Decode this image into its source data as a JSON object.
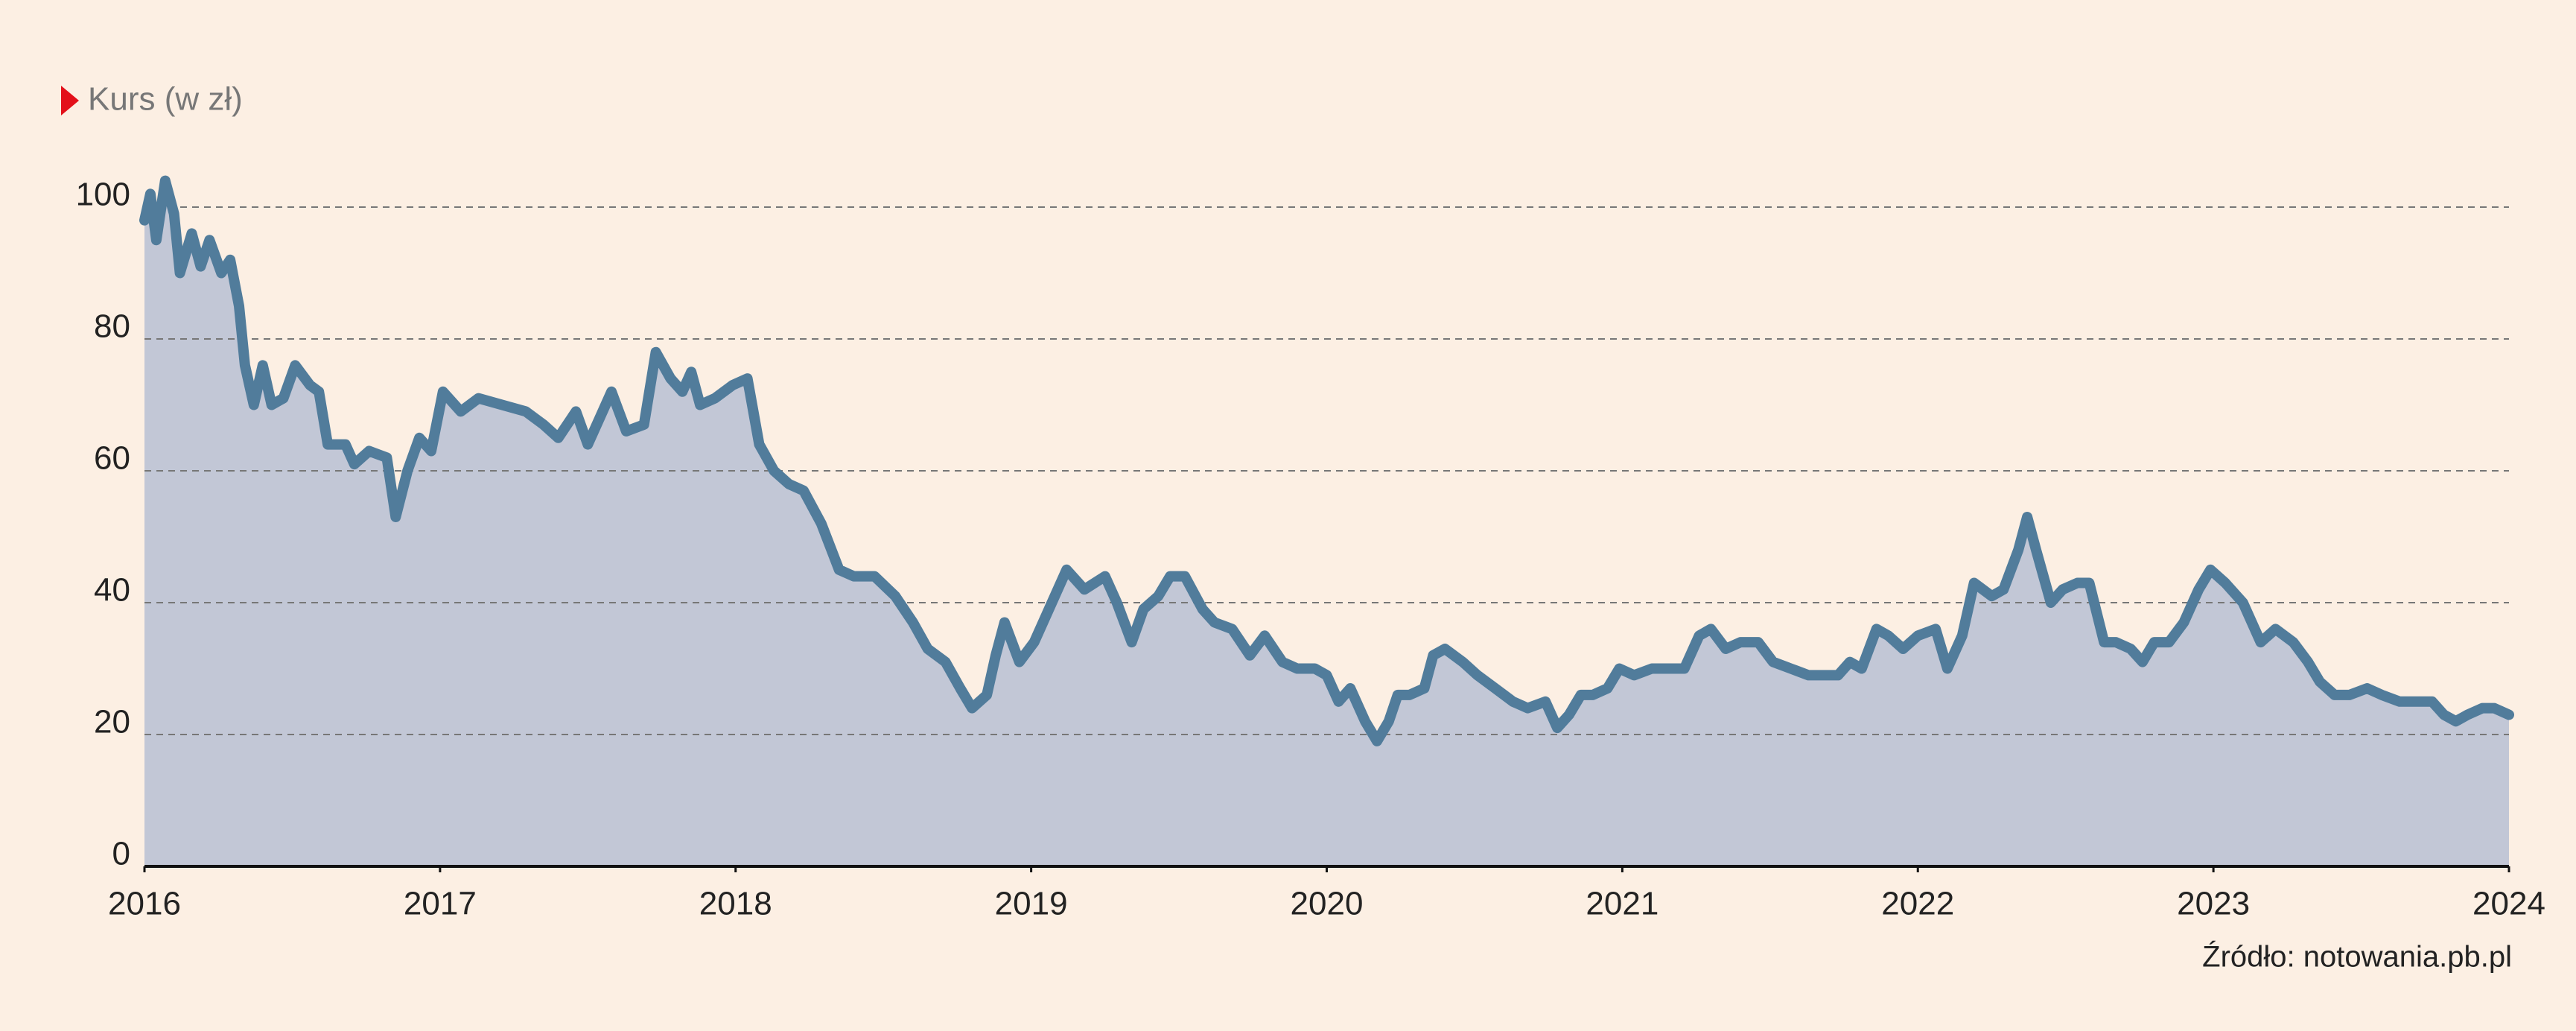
{
  "chart_data": {
    "type": "area",
    "title": "Kurs (w zł)",
    "source": "Źródło: notowania.pb.pl",
    "color": "#517c9b",
    "fill": "#c2c7d6",
    "grid": true,
    "xlim": [
      2016,
      2024
    ],
    "xticks": [
      2016,
      2017,
      2018,
      2019,
      2020,
      2021,
      2022,
      2023,
      2024
    ],
    "ylim": [
      0,
      100
    ],
    "yticks": [
      0,
      20,
      40,
      60,
      80,
      100
    ],
    "x": [
      2016.0,
      2016.02,
      2016.04,
      2016.07,
      2016.1,
      2016.12,
      2016.16,
      2016.19,
      2016.22,
      2016.26,
      2016.29,
      2016.32,
      2016.34,
      2016.37,
      2016.4,
      2016.43,
      2016.47,
      2016.51,
      2016.56,
      2016.59,
      2016.62,
      2016.68,
      2016.71,
      2016.76,
      2016.82,
      2016.85,
      2016.89,
      2016.93,
      2016.97,
      2017.01,
      2017.07,
      2017.13,
      2017.21,
      2017.29,
      2017.35,
      2017.4,
      2017.46,
      2017.5,
      2017.54,
      2017.58,
      2017.63,
      2017.69,
      2017.73,
      2017.78,
      2017.82,
      2017.85,
      2017.88,
      2017.93,
      2017.99,
      2018.04,
      2018.08,
      2018.13,
      2018.18,
      2018.23,
      2018.29,
      2018.35,
      2018.4,
      2018.47,
      2018.54,
      2018.6,
      2018.65,
      2018.71,
      2018.76,
      2018.8,
      2018.85,
      2018.88,
      2018.91,
      2018.96,
      2019.01,
      2019.07,
      2019.12,
      2019.18,
      2019.25,
      2019.29,
      2019.34,
      2019.38,
      2019.43,
      2019.47,
      2019.52,
      2019.58,
      2019.62,
      2019.68,
      2019.74,
      2019.79,
      2019.85,
      2019.9,
      2019.96,
      2020.0,
      2020.04,
      2020.08,
      2020.13,
      2020.17,
      2020.21,
      2020.24,
      2020.28,
      2020.33,
      2020.36,
      2020.4,
      2020.46,
      2020.51,
      2020.57,
      2020.63,
      2020.68,
      2020.74,
      2020.78,
      2020.82,
      2020.86,
      2020.9,
      2020.95,
      2020.99,
      2021.04,
      2021.1,
      2021.15,
      2021.21,
      2021.26,
      2021.3,
      2021.35,
      2021.4,
      2021.46,
      2021.51,
      2021.57,
      2021.63,
      2021.68,
      2021.73,
      2021.77,
      2021.81,
      2021.86,
      2021.9,
      2021.95,
      2022.0,
      2022.06,
      2022.1,
      2022.15,
      2022.19,
      2022.25,
      2022.29,
      2022.34,
      2022.37,
      2022.4,
      2022.45,
      2022.49,
      2022.54,
      2022.58,
      2022.63,
      2022.67,
      2022.72,
      2022.76,
      2022.8,
      2022.85,
      2022.9,
      2022.95,
      2022.99,
      2023.04,
      2023.1,
      2023.16,
      2023.21,
      2023.27,
      2023.32,
      2023.36,
      2023.41,
      2023.46,
      2023.52,
      2023.57,
      2023.63,
      2023.68,
      2023.74,
      2023.78,
      2023.82,
      2023.86,
      2023.91,
      2023.95,
      2024.0
    ],
    "values": [
      98,
      102,
      95,
      104,
      99,
      90,
      96,
      91,
      95,
      90,
      92,
      85,
      76,
      70,
      76,
      70,
      71,
      76,
      73,
      72,
      64,
      64,
      61,
      63,
      62,
      53,
      60,
      65,
      63,
      72,
      69,
      71,
      70,
      69,
      67,
      65,
      69,
      64,
      68,
      72,
      66,
      67,
      78,
      74,
      72,
      75,
      70,
      71,
      73,
      74,
      64,
      60,
      58,
      57,
      52,
      45,
      44,
      44,
      41,
      37,
      33,
      31,
      27,
      24,
      26,
      32,
      37,
      31,
      34,
      40,
      45,
      42,
      44,
      40,
      34,
      39,
      41,
      44,
      44,
      39,
      37,
      36,
      32,
      35,
      31,
      30,
      30,
      29,
      25,
      27,
      22,
      19,
      22,
      26,
      26,
      27,
      32,
      33,
      31,
      29,
      27,
      25,
      24,
      25,
      21,
      23,
      26,
      26,
      27,
      30,
      29,
      30,
      30,
      30,
      35,
      36,
      33,
      34,
      34,
      31,
      30,
      29,
      29,
      29,
      31,
      30,
      36,
      35,
      33,
      35,
      36,
      30,
      35,
      43,
      41,
      42,
      48,
      53,
      48,
      40,
      42,
      43,
      43,
      34,
      34,
      33,
      31,
      34,
      34,
      37,
      42,
      45,
      43,
      40,
      34,
      36,
      34,
      31,
      28,
      26,
      26,
      27,
      26,
      25,
      25,
      25,
      23,
      22,
      23,
      24,
      24,
      23
    ]
  }
}
